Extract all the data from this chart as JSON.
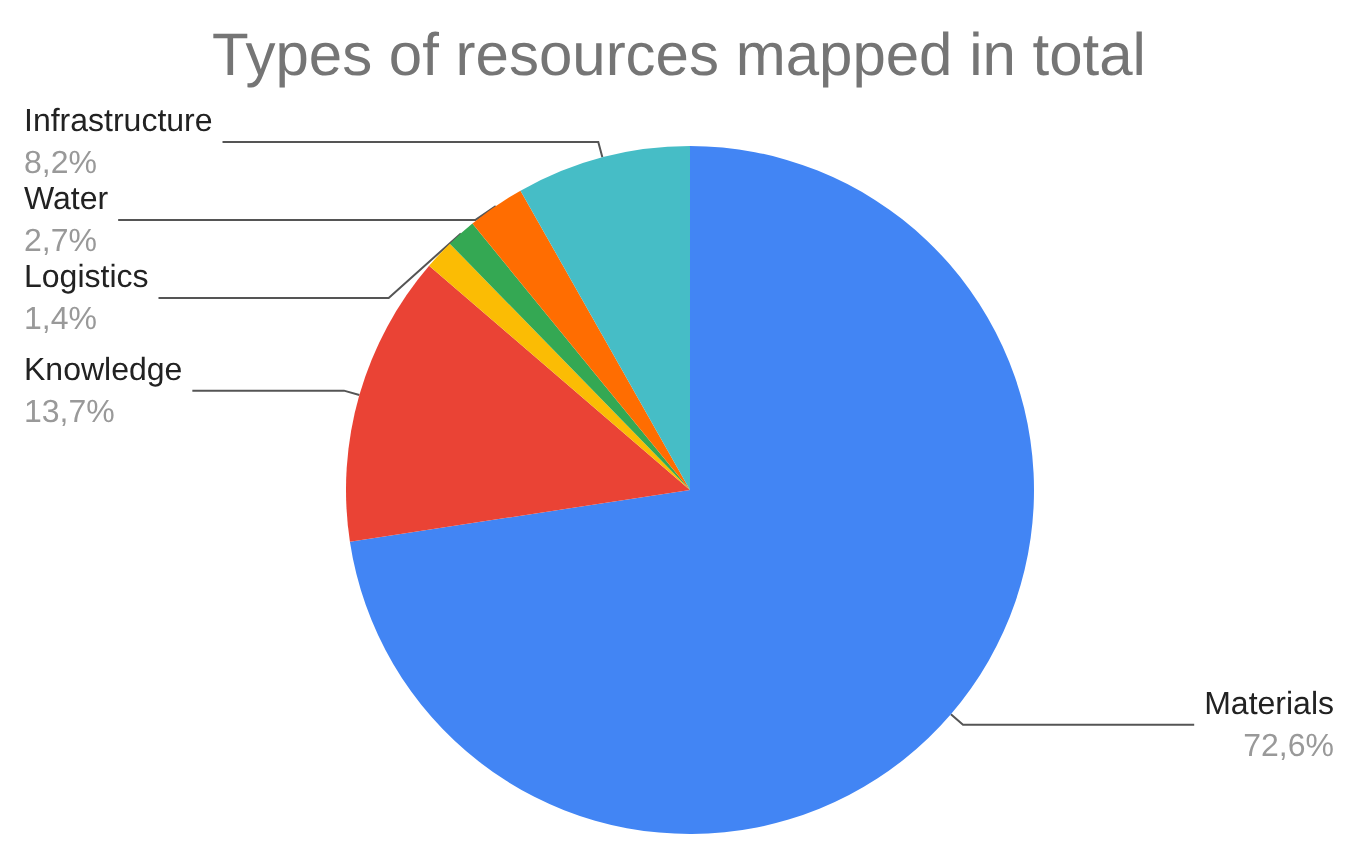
{
  "chart_data": {
    "type": "pie",
    "title": "Types of resources mapped in total",
    "categories": [
      "Materials",
      "Knowledge",
      null,
      "Logistics",
      "Water",
      "Infrastructure"
    ],
    "values": [
      72.6,
      13.7,
      1.4,
      1.4,
      2.7,
      8.2
    ],
    "value_labels": [
      "72,6%",
      "13,7%",
      null,
      "1,4%",
      "2,7%",
      "8,2%"
    ],
    "colors": [
      "#4285f4",
      "#ea4335",
      "#fbbc04",
      "#34a853",
      "#ff6d01",
      "#46bdc6"
    ],
    "legend": false
  }
}
